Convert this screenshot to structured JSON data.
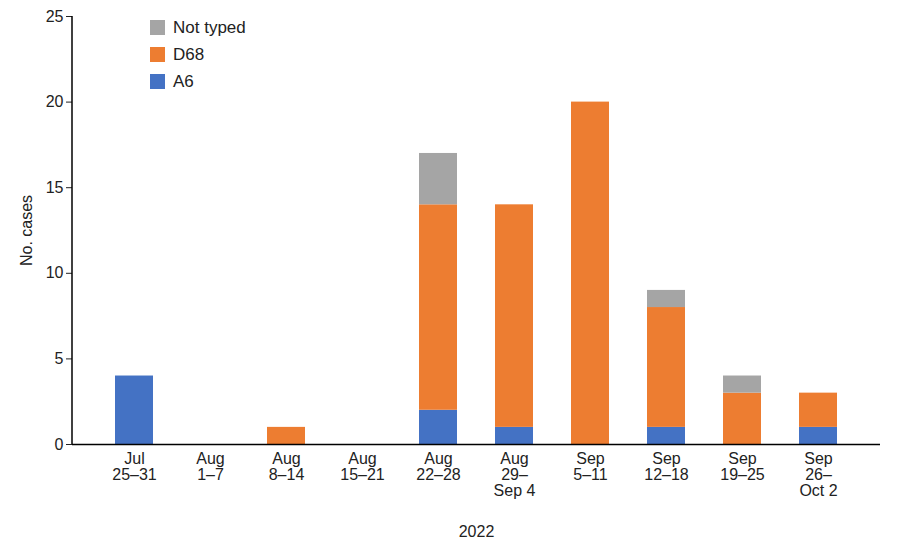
{
  "chart_data": {
    "type": "bar",
    "stacked": true,
    "categories": [
      "Jul 25–31",
      "Aug 1–7",
      "Aug 8–14",
      "Aug 15–21",
      "Aug 22–28",
      "Aug 29–Sep 4",
      "Sep 5–11",
      "Sep 12–18",
      "Sep 19–25",
      "Sep 26–Oct 2"
    ],
    "series": [
      {
        "name": "A6",
        "color": "#4472c4",
        "values": [
          4,
          0,
          0,
          0,
          2,
          1,
          0,
          1,
          0,
          1
        ]
      },
      {
        "name": "D68",
        "color": "#ed7d31",
        "values": [
          0,
          0,
          1,
          0,
          12,
          13,
          20,
          7,
          3,
          2
        ]
      },
      {
        "name": "Not typed",
        "color": "#a5a5a5",
        "values": [
          0,
          0,
          0,
          0,
          3,
          0,
          0,
          1,
          1,
          0
        ]
      }
    ],
    "xlabel": "2022",
    "ylabel": "No. cases",
    "ylim": [
      0,
      25
    ],
    "yticks": [
      0,
      5,
      10,
      15,
      20,
      25
    ],
    "grid": false,
    "legend": "top-left"
  }
}
